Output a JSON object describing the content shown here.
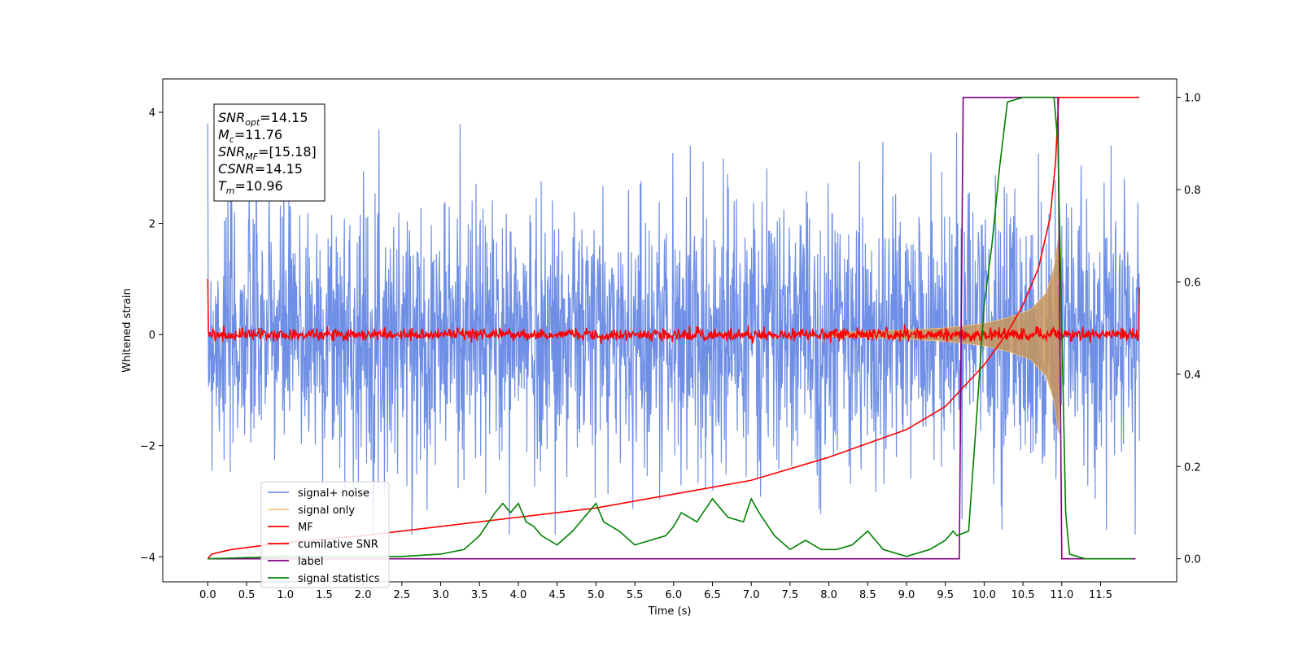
{
  "chart_data": {
    "type": "line",
    "title": "",
    "xlabel": "Time (s)",
    "ylabel": "Whitened strain",
    "y2label": "",
    "xlim": [
      -0.58,
      12.48
    ],
    "ylim": [
      -4.45,
      4.6
    ],
    "y2lim": [
      -0.05,
      1.04
    ],
    "xticks": [
      0.0,
      0.5,
      1.0,
      1.5,
      2.0,
      2.5,
      3.0,
      3.5,
      4.0,
      4.5,
      5.0,
      5.5,
      6.0,
      6.5,
      7.0,
      7.5,
      8.0,
      8.5,
      9.0,
      9.5,
      10.0,
      10.5,
      11.0,
      11.5
    ],
    "xtick_labels": [
      "0.0",
      "0.5",
      "1.0",
      "1.5",
      "2.0",
      "2.5",
      "3.0",
      "3.5",
      "4.0",
      "4.5",
      "5.0",
      "5.5",
      "6.0",
      "6.5",
      "7.0",
      "7.5",
      "8.0",
      "8.5",
      "9.0",
      "9.5",
      "10.0",
      "10.5",
      "11.0",
      "11.5"
    ],
    "yticks": [
      -4,
      -2,
      0,
      2,
      4
    ],
    "ytick_labels": [
      "−4",
      "−2",
      "0",
      "2",
      "4"
    ],
    "y2ticks": [
      0.0,
      0.2,
      0.4,
      0.6,
      0.8,
      1.0
    ],
    "y2tick_labels": [
      "0.0",
      "0.2",
      "0.4",
      "0.6",
      "0.8",
      "1.0"
    ],
    "grid": false,
    "legend_position": "lower-left",
    "series": [
      {
        "name": "signal+ noise",
        "axis": "left",
        "color": "#6f8fe6",
        "description_values": {
          "x_start": 0.0,
          "x_end": 12.0,
          "typical_amplitude": 1.6,
          "max": 3.8,
          "min": -3.6
        }
      },
      {
        "name": "signal only",
        "axis": "left",
        "color": "#f5c77a",
        "envelope": {
          "x": [
            8.0,
            9.0,
            9.5,
            10.0,
            10.3,
            10.6,
            10.8,
            10.9,
            10.96,
            11.0
          ],
          "amplitude": [
            0.03,
            0.08,
            0.12,
            0.2,
            0.3,
            0.45,
            0.75,
            1.2,
            1.8,
            0.0
          ]
        }
      },
      {
        "name": "MF",
        "axis": "left",
        "color": "#ff0000",
        "description_values": {
          "x_start": 0.0,
          "x_end": 12.0,
          "typical_amplitude": 0.1,
          "start_value": 1.0,
          "end_value": 0.85
        }
      },
      {
        "name": "cumilative SNR",
        "axis": "right",
        "color": "#ff0000",
        "x": [
          0.0,
          0.05,
          0.3,
          1.0,
          2.0,
          3.0,
          4.0,
          5.0,
          6.0,
          7.0,
          8.0,
          9.0,
          9.5,
          10.0,
          10.3,
          10.5,
          10.7,
          10.85,
          10.92,
          10.96,
          11.0,
          12.0
        ],
        "values": [
          0.0,
          0.01,
          0.02,
          0.035,
          0.05,
          0.07,
          0.09,
          0.11,
          0.14,
          0.17,
          0.22,
          0.28,
          0.33,
          0.42,
          0.49,
          0.55,
          0.63,
          0.74,
          0.86,
          1.0,
          1.0,
          1.0
        ]
      },
      {
        "name": "label",
        "axis": "right",
        "color": "#800080",
        "x": [
          0.0,
          9.68,
          9.73,
          10.95,
          11.0,
          11.95
        ],
        "values": [
          0.0,
          0.0,
          1.0,
          1.0,
          0.0,
          0.0
        ]
      },
      {
        "name": "signal statistics",
        "axis": "right",
        "color": "#008000",
        "x": [
          0.0,
          1.0,
          2.0,
          2.5,
          3.0,
          3.3,
          3.5,
          3.7,
          3.8,
          3.9,
          4.0,
          4.1,
          4.2,
          4.3,
          4.5,
          4.7,
          4.9,
          5.0,
          5.1,
          5.3,
          5.5,
          5.7,
          5.9,
          6.0,
          6.1,
          6.3,
          6.5,
          6.7,
          6.9,
          7.0,
          7.1,
          7.3,
          7.5,
          7.7,
          7.9,
          8.1,
          8.3,
          8.5,
          8.7,
          9.0,
          9.3,
          9.5,
          9.6,
          9.65,
          9.8,
          9.9,
          10.0,
          10.1,
          10.2,
          10.3,
          10.5,
          10.7,
          10.9,
          10.95,
          11.0,
          11.05,
          11.1,
          11.3,
          11.6,
          11.9
        ],
        "values": [
          0.0,
          0.005,
          0.005,
          0.005,
          0.01,
          0.02,
          0.05,
          0.1,
          0.12,
          0.1,
          0.12,
          0.08,
          0.07,
          0.05,
          0.03,
          0.06,
          0.1,
          0.12,
          0.08,
          0.06,
          0.03,
          0.04,
          0.05,
          0.07,
          0.1,
          0.08,
          0.13,
          0.09,
          0.08,
          0.13,
          0.1,
          0.05,
          0.02,
          0.04,
          0.02,
          0.02,
          0.03,
          0.06,
          0.02,
          0.005,
          0.02,
          0.04,
          0.06,
          0.05,
          0.06,
          0.3,
          0.55,
          0.68,
          0.85,
          0.99,
          1.0,
          1.0,
          1.0,
          0.9,
          0.5,
          0.1,
          0.01,
          0.0,
          0.0,
          0.0
        ]
      }
    ],
    "annotation": {
      "lines": [
        {
          "base": "SNR",
          "sub": "opt",
          "rest": "=14.15"
        },
        {
          "base": "M",
          "sub": "c",
          "rest": "=11.76"
        },
        {
          "base": "SNR",
          "sub": "MF",
          "rest": "=[15.18]"
        },
        {
          "base": "CSNR",
          "sub": "",
          "rest": "=14.15"
        },
        {
          "base": "T",
          "sub": "m",
          "rest": "=10.96"
        }
      ]
    }
  }
}
